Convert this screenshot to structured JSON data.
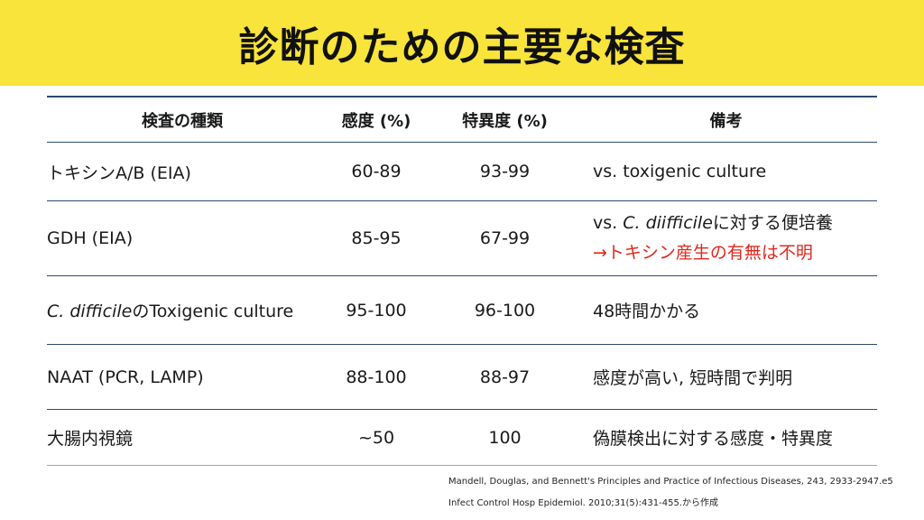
{
  "title": "診断のための主要な検査",
  "table": {
    "headers": [
      "検査の種類",
      "感度 (%)",
      "特異度 (%)",
      "備考"
    ],
    "rows": [
      {
        "test": "トキシンA/B (EIA)",
        "sensitivity": "60-89",
        "specificity": "93-99",
        "note": "vs. toxigenic culture"
      },
      {
        "test": "GDH (EIA)",
        "sensitivity": "85-95",
        "specificity": "67-99",
        "note_prefix": "vs. ",
        "note_italic": "C. diifficile",
        "note_suffix": "に対する便培養",
        "note_red_line": "→トキシン産生の有無は不明"
      },
      {
        "test_italic": "C. difficile",
        "test_suffix": "のToxigenic culture",
        "sensitivity": "95-100",
        "specificity": "96-100",
        "note": "48時間かかる"
      },
      {
        "test": "NAAT (PCR, LAMP)",
        "sensitivity": "88-100",
        "specificity": "88-97",
        "note": "感度が高い, 短時間で判明"
      },
      {
        "test": "大腸内視鏡",
        "sensitivity": "~50",
        "specificity": "100",
        "note": "偽膜検出に対する感度・特異度"
      }
    ]
  },
  "references": [
    "Mandell, Douglas, and Bennett's Principles and Practice of Infectious Diseases, 243, 2933-2947.e5",
    "Infect Control Hosp Epidemiol. 2010;31(5):431-455.から作成"
  ],
  "colors": {
    "banner": "#f8e43a",
    "rule": "#2c4a6e",
    "alert_red": "#e0281e"
  }
}
